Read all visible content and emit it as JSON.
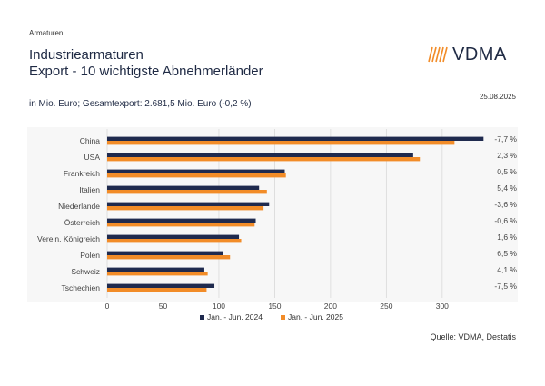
{
  "header": {
    "section_label": "Armaturen",
    "title_line1": "Industriearmaturen",
    "title_line2": "Export - 10 wichtigste Abnehmerländer",
    "logo_text": "VDMA",
    "date": "25.08.2025",
    "subtitle": "in Mio. Euro; Gesamtexport: 2.681,5 Mio. Euro (-0,2 %)"
  },
  "footer": {
    "source": "Quelle: VDMA, Destatis"
  },
  "colors": {
    "series_2024": "#1f2a4e",
    "series_2025": "#f28c28",
    "logo_accent": "#f28c28",
    "grid": "#d9d9d9",
    "plot_bg": "#f7f7f7"
  },
  "chart_data": {
    "type": "bar",
    "orientation": "horizontal",
    "categories": [
      "China",
      "USA",
      "Frankreich",
      "Italien",
      "Niederlande",
      "Österreich",
      "Verein. Königreich",
      "Polen",
      "Schweiz",
      "Tschechien"
    ],
    "series": [
      {
        "name": "Jan. - Jun. 2024",
        "values": [
          337,
          274,
          159,
          136,
          145,
          133,
          118,
          104,
          87,
          96
        ]
      },
      {
        "name": "Jan. - Jun. 2025",
        "values": [
          311,
          280,
          160,
          143,
          140,
          132,
          120,
          110,
          90,
          89
        ]
      }
    ],
    "changes": [
      "-7,7 %",
      "2,3 %",
      "0,5 %",
      "5,4 %",
      "-3,6 %",
      "-0,6 %",
      "1,6 %",
      "6,5 %",
      "4,1 %",
      "-7,5 %"
    ],
    "xticks": [
      0,
      50,
      100,
      150,
      200,
      250,
      300
    ],
    "xlim": [
      0,
      340
    ],
    "grid": true,
    "legend_position": "bottom"
  }
}
